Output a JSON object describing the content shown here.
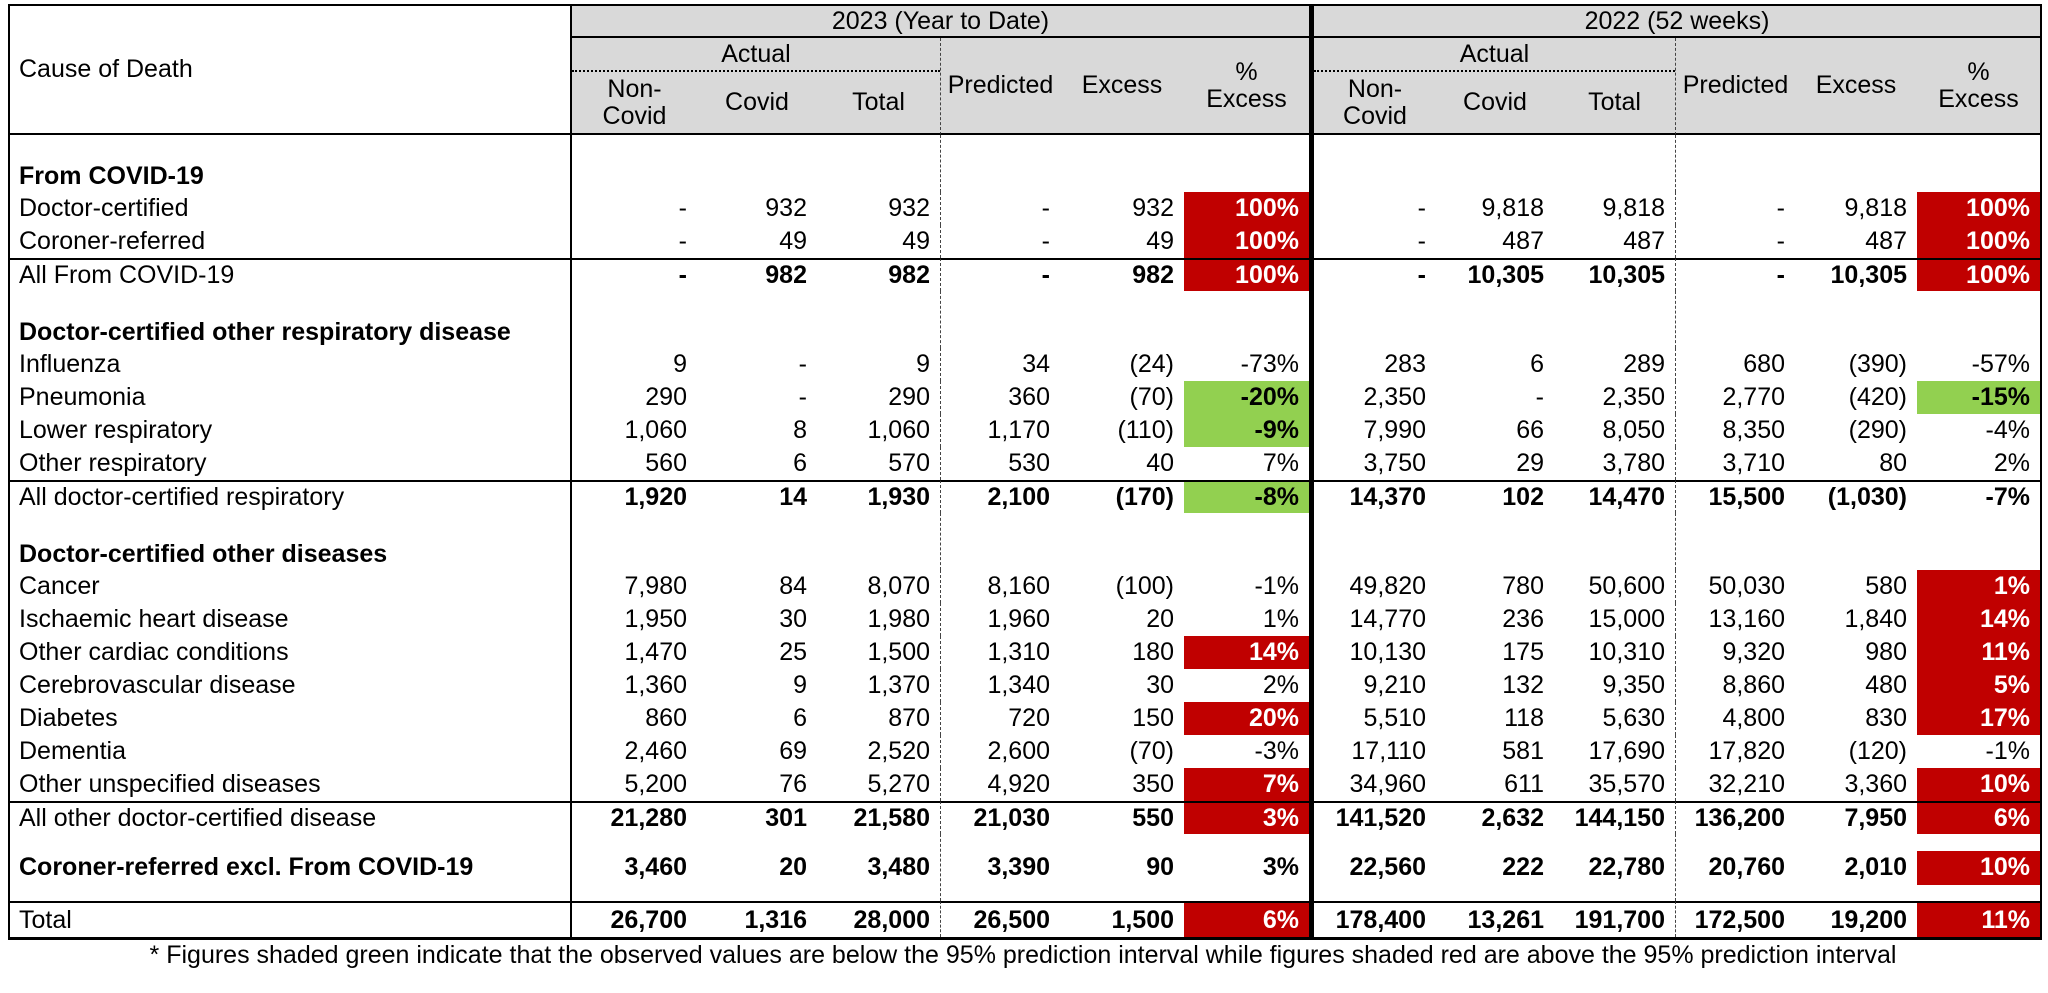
{
  "colors": {
    "shade_red": "#c00000",
    "shade_green": "#92d050",
    "header_bg": "#d9d9d9"
  },
  "header": {
    "cause_of_death": "Cause of Death",
    "group_2023": "2023 (Year to Date)",
    "group_2022": "2022 (52 weeks)",
    "actual": "Actual",
    "non_covid": "Non-\nCovid",
    "covid": "Covid",
    "total": "Total",
    "predicted": "Predicted",
    "excess": "Excess",
    "pct_excess": "%\nExcess"
  },
  "rows": [
    {
      "type": "section",
      "label": "From COVID-19",
      "y23": [
        "",
        "",
        "",
        "",
        "",
        ""
      ],
      "y22": [
        "",
        "",
        "",
        "",
        "",
        ""
      ]
    },
    {
      "type": "data",
      "label": "Doctor-certified",
      "y23": [
        "-",
        "932",
        "932",
        "-",
        "932",
        "100%"
      ],
      "s23": "red",
      "y22": [
        "-",
        "9,818",
        "9,818",
        "-",
        "9,818",
        "100%"
      ],
      "s22": "red"
    },
    {
      "type": "data",
      "label": "Coroner-referred",
      "y23": [
        "-",
        "49",
        "49",
        "-",
        "49",
        "100%"
      ],
      "s23": "red",
      "y22": [
        "-",
        "487",
        "487",
        "-",
        "487",
        "100%"
      ],
      "s22": "red"
    },
    {
      "type": "total",
      "label": "All From COVID-19",
      "y23": [
        "-",
        "982",
        "982",
        "-",
        "982",
        "100%"
      ],
      "s23": "red",
      "y22": [
        "-",
        "10,305",
        "10,305",
        "-",
        "10,305",
        "100%"
      ],
      "s22": "red"
    },
    {
      "type": "section",
      "label": "Doctor-certified other respiratory disease",
      "y23": [
        "",
        "",
        "",
        "",
        "",
        ""
      ],
      "y22": [
        "",
        "",
        "",
        "",
        "",
        ""
      ]
    },
    {
      "type": "data",
      "label": "Influenza",
      "y23": [
        "9",
        "-",
        "9",
        "34",
        "(24)",
        "-73%"
      ],
      "y22": [
        "283",
        "6",
        "289",
        "680",
        "(390)",
        "-57%"
      ]
    },
    {
      "type": "data",
      "label": "Pneumonia",
      "y23": [
        "290",
        "-",
        "290",
        "360",
        "(70)",
        "-20%"
      ],
      "s23": "green",
      "y22": [
        "2,350",
        "-",
        "2,350",
        "2,770",
        "(420)",
        "-15%"
      ],
      "s22": "green"
    },
    {
      "type": "data",
      "label": "Lower respiratory",
      "y23": [
        "1,060",
        "8",
        "1,060",
        "1,170",
        "(110)",
        "-9%"
      ],
      "s23": "green",
      "y22": [
        "7,990",
        "66",
        "8,050",
        "8,350",
        "(290)",
        "-4%"
      ]
    },
    {
      "type": "data",
      "label": "Other respiratory",
      "y23": [
        "560",
        "6",
        "570",
        "530",
        "40",
        "7%"
      ],
      "y22": [
        "3,750",
        "29",
        "3,780",
        "3,710",
        "80",
        "2%"
      ]
    },
    {
      "type": "total",
      "label": "All doctor-certified respiratory",
      "y23": [
        "1,920",
        "14",
        "1,930",
        "2,100",
        "(170)",
        "-8%"
      ],
      "s23": "green",
      "y22": [
        "14,370",
        "102",
        "14,470",
        "15,500",
        "(1,030)",
        "-7%"
      ]
    },
    {
      "type": "section",
      "label": "Doctor-certified other diseases",
      "y23": [
        "",
        "",
        "",
        "",
        "",
        ""
      ],
      "y22": [
        "",
        "",
        "",
        "",
        "",
        ""
      ]
    },
    {
      "type": "data",
      "label": "Cancer",
      "y23": [
        "7,980",
        "84",
        "8,070",
        "8,160",
        "(100)",
        "-1%"
      ],
      "y22": [
        "49,820",
        "780",
        "50,600",
        "50,030",
        "580",
        "1%"
      ],
      "s22": "red"
    },
    {
      "type": "data",
      "label": "Ischaemic heart disease",
      "y23": [
        "1,950",
        "30",
        "1,980",
        "1,960",
        "20",
        "1%"
      ],
      "y22": [
        "14,770",
        "236",
        "15,000",
        "13,160",
        "1,840",
        "14%"
      ],
      "s22": "red"
    },
    {
      "type": "data",
      "label": "Other cardiac conditions",
      "y23": [
        "1,470",
        "25",
        "1,500",
        "1,310",
        "180",
        "14%"
      ],
      "s23": "red",
      "y22": [
        "10,130",
        "175",
        "10,310",
        "9,320",
        "980",
        "11%"
      ],
      "s22": "red"
    },
    {
      "type": "data",
      "label": "Cerebrovascular disease",
      "y23": [
        "1,360",
        "9",
        "1,370",
        "1,340",
        "30",
        "2%"
      ],
      "y22": [
        "9,210",
        "132",
        "9,350",
        "8,860",
        "480",
        "5%"
      ],
      "s22": "red"
    },
    {
      "type": "data",
      "label": "Diabetes",
      "y23": [
        "860",
        "6",
        "870",
        "720",
        "150",
        "20%"
      ],
      "s23": "red",
      "y22": [
        "5,510",
        "118",
        "5,630",
        "4,800",
        "830",
        "17%"
      ],
      "s22": "red"
    },
    {
      "type": "data",
      "label": "Dementia",
      "y23": [
        "2,460",
        "69",
        "2,520",
        "2,600",
        "(70)",
        "-3%"
      ],
      "y22": [
        "17,110",
        "581",
        "17,690",
        "17,820",
        "(120)",
        "-1%"
      ]
    },
    {
      "type": "data",
      "label": "Other unspecified diseases",
      "y23": [
        "5,200",
        "76",
        "5,270",
        "4,920",
        "350",
        "7%"
      ],
      "s23": "red",
      "y22": [
        "34,960",
        "611",
        "35,570",
        "32,210",
        "3,360",
        "10%"
      ],
      "s22": "red"
    },
    {
      "type": "total",
      "label": "All other doctor-certified disease",
      "y23": [
        "21,280",
        "301",
        "21,580",
        "21,030",
        "550",
        "3%"
      ],
      "s23": "red",
      "y22": [
        "141,520",
        "2,632",
        "144,150",
        "136,200",
        "7,950",
        "6%"
      ],
      "s22": "red"
    },
    {
      "type": "tall",
      "label": "Coroner-referred excl. From COVID-19",
      "y23": [
        "3,460",
        "20",
        "3,480",
        "3,390",
        "90",
        "3%"
      ],
      "y22": [
        "22,560",
        "222",
        "22,780",
        "20,760",
        "2,010",
        "10%"
      ],
      "s22": "red"
    },
    {
      "type": "grand",
      "label": "Total",
      "y23": [
        "26,700",
        "1,316",
        "28,000",
        "26,500",
        "1,500",
        "6%"
      ],
      "s23": "red",
      "y22": [
        "178,400",
        "13,261",
        "191,700",
        "172,500",
        "19,200",
        "11%"
      ],
      "s22": "red"
    }
  ],
  "footnote": "* Figures shaded green indicate that the observed values are below the 95% prediction interval while figures shaded red are above the 95% prediction interval"
}
